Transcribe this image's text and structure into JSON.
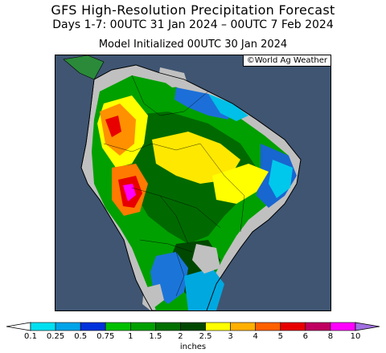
{
  "title": "GFS High-Resolution Precipitation Forecast",
  "subtitle": "Days 1-7: 00UTC 31 Jan 2024 – 00UTC 7 Feb 2024",
  "init_line": "Model Initialized 00UTC 30 Jan 2024",
  "credit": "©World Ag Weather",
  "legend": {
    "units": "inches",
    "labels": [
      "0.1",
      "0.25",
      "0.5",
      "0.75",
      "1",
      "1.5",
      "2",
      "2.5",
      "3",
      "4",
      "5",
      "6",
      "8",
      "10"
    ],
    "colors": [
      "#00e0f0",
      "#00a4e8",
      "#0032dc",
      "#00c000",
      "#00a000",
      "#007000",
      "#004800",
      "#ffff00",
      "#ffb000",
      "#ff6000",
      "#e80000",
      "#c00060",
      "#ff00ff",
      "#a070e0"
    ]
  },
  "map": {
    "ocean_color": "#3f5572",
    "land_dry_color": "#c0c0c0",
    "region": "South America"
  }
}
